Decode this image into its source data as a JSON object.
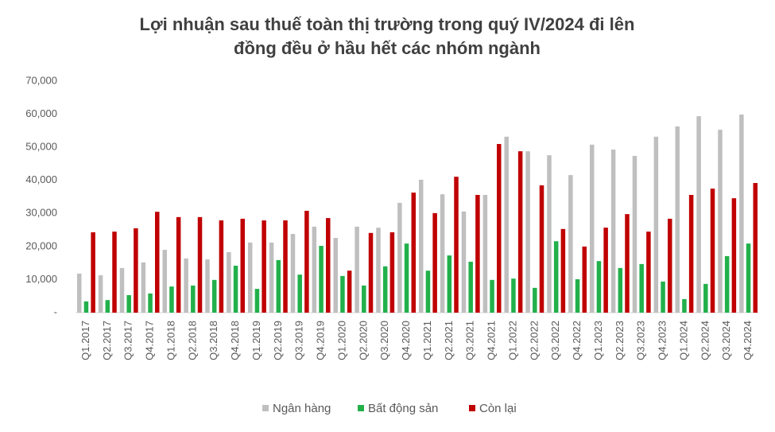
{
  "chart_data": {
    "type": "bar",
    "title": [
      "Lợi nhuận sau thuế toàn thị trường trong quý IV/2024 đi lên",
      "đồng đều ở hầu hết các nhóm ngành"
    ],
    "categories": [
      "Q1.2017",
      "Q2.2017",
      "Q3.2017",
      "Q4.2017",
      "Q1.2018",
      "Q2.2018",
      "Q3.2018",
      "Q4.2018",
      "Q1.2019",
      "Q2.2019",
      "Q3.2019",
      "Q4.2019",
      "Q1.2020",
      "Q2.2020",
      "Q3.2020",
      "Q4.2020",
      "Q1.2021",
      "Q2.2021",
      "Q3.2021",
      "Q4.2021",
      "Q1.2022",
      "Q2.2022",
      "Q3.2022",
      "Q4.2022",
      "Q1.2023",
      "Q2.2023",
      "Q3.2023",
      "Q4.2023",
      "Q1.2024",
      "Q2.2024",
      "Q3.2024",
      "Q4.2024"
    ],
    "series": [
      {
        "name": "Ngân hàng",
        "color": "#bfbfbf",
        "values": [
          11800,
          11300,
          13500,
          15200,
          19000,
          16400,
          16100,
          18300,
          21200,
          21200,
          23800,
          26000,
          22600,
          26000,
          25700,
          33200,
          40200,
          35800,
          30600,
          35600,
          53200,
          48800,
          47600,
          41600,
          50800,
          49300,
          47400,
          53200,
          56300,
          59400,
          55300,
          59900
        ]
      },
      {
        "name": "Bất động sản",
        "color": "#22b04b",
        "values": [
          3400,
          3800,
          5300,
          5800,
          7900,
          8200,
          9900,
          14200,
          7200,
          15900,
          11500,
          20200,
          11100,
          8200,
          14000,
          20900,
          12700,
          17300,
          15400,
          9900,
          10300,
          7500,
          21600,
          10100,
          15600,
          13500,
          14700,
          9400,
          4100,
          8700,
          17100,
          20900
        ]
      },
      {
        "name": "Còn lại",
        "color": "#c00000",
        "values": [
          24300,
          24500,
          25500,
          30500,
          28900,
          28900,
          27900,
          28400,
          27900,
          27900,
          30800,
          28600,
          12700,
          24100,
          24300,
          36300,
          30100,
          41100,
          35600,
          51000,
          48800,
          38500,
          25300,
          20000,
          25700,
          29800,
          24500,
          28400,
          35600,
          37500,
          34600,
          39200
        ]
      }
    ],
    "ylim": [
      0,
      70000
    ],
    "yticks": [
      {
        "value": 0,
        "label": "-"
      },
      {
        "value": 10000,
        "label": "10,000"
      },
      {
        "value": 20000,
        "label": "20,000"
      },
      {
        "value": 30000,
        "label": "30,000"
      },
      {
        "value": 40000,
        "label": "40,000"
      },
      {
        "value": 50000,
        "label": "50,000"
      },
      {
        "value": 60000,
        "label": "60,000"
      },
      {
        "value": 70000,
        "label": "70,000"
      }
    ],
    "grid": false,
    "legend": "bottom"
  }
}
